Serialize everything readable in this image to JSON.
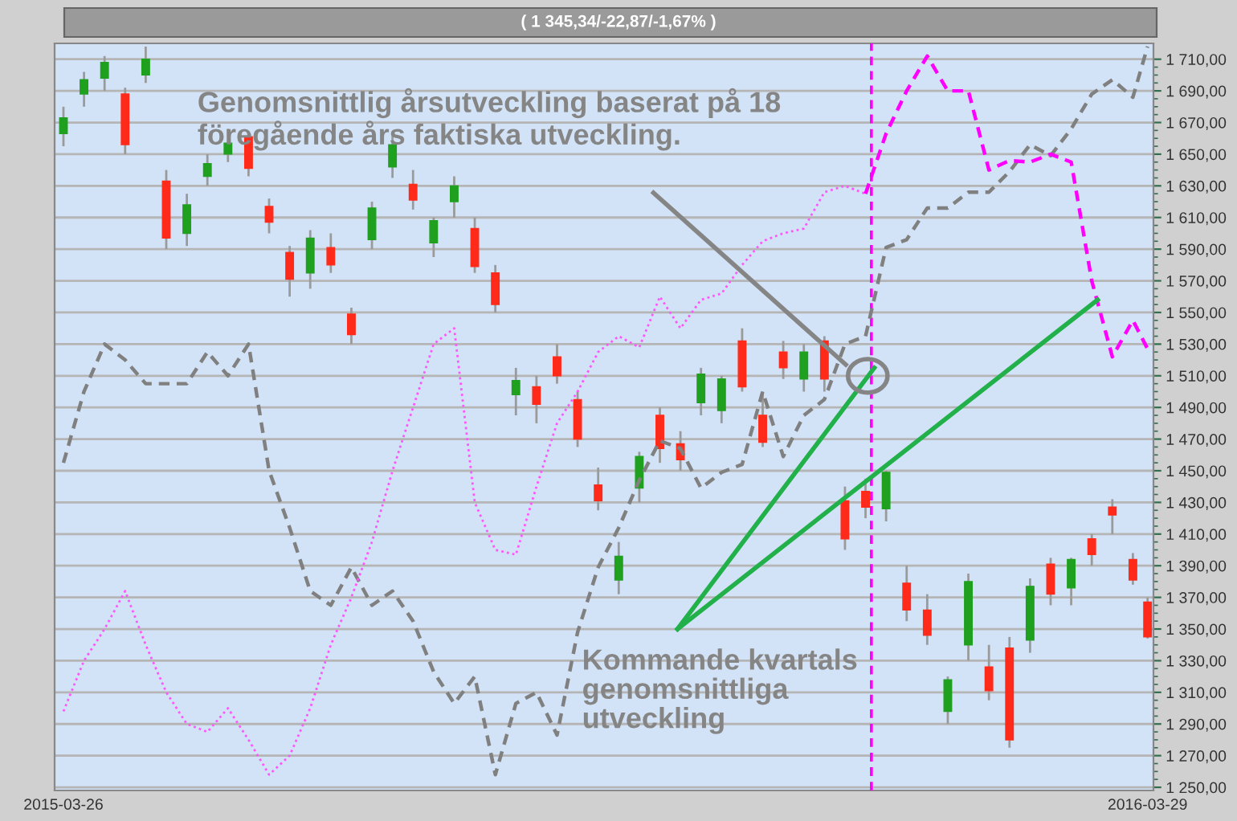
{
  "chart_data": {
    "type": "candlestick",
    "title": "( 1 345,34/-22,87/-1,67% )",
    "x": [
      "2015-03-26",
      "2015-04-02",
      "2015-04-09",
      "2015-04-16",
      "2015-04-23",
      "2015-04-30",
      "2015-05-07",
      "2015-05-14",
      "2015-05-21",
      "2015-05-28",
      "2015-06-04",
      "2015-06-11",
      "2015-06-18",
      "2015-06-25",
      "2015-07-02",
      "2015-07-09",
      "2015-07-16",
      "2015-07-23",
      "2015-07-30",
      "2015-08-06",
      "2015-08-13",
      "2015-08-20",
      "2015-08-27",
      "2015-09-03",
      "2015-09-10",
      "2015-09-17",
      "2015-09-24",
      "2015-10-01",
      "2015-10-08",
      "2015-10-15",
      "2015-10-22",
      "2015-10-29",
      "2015-11-05",
      "2015-11-12",
      "2015-11-19",
      "2015-11-26",
      "2015-12-03",
      "2015-12-10",
      "2015-12-17",
      "2015-12-24",
      "2015-12-31",
      "2016-01-07",
      "2016-01-14",
      "2016-01-21",
      "2016-01-28",
      "2016-02-04",
      "2016-02-11",
      "2016-02-18",
      "2016-02-25",
      "2016-03-03",
      "2016-03-10",
      "2016-03-17",
      "2016-03-24",
      "2016-03-29"
    ],
    "ohlc": [
      [
        1663,
        1680,
        1655,
        1673
      ],
      [
        1688,
        1702,
        1680,
        1697
      ],
      [
        1698,
        1712,
        1690,
        1708
      ],
      [
        1688,
        1692,
        1650,
        1656
      ],
      [
        1700,
        1718,
        1695,
        1710
      ],
      [
        1633,
        1640,
        1590,
        1597
      ],
      [
        1600,
        1625,
        1592,
        1618
      ],
      [
        1636,
        1650,
        1630,
        1644
      ],
      [
        1650,
        1666,
        1645,
        1657
      ],
      [
        1661,
        1664,
        1636,
        1641
      ],
      [
        1617,
        1622,
        1600,
        1607
      ],
      [
        1588,
        1592,
        1560,
        1571
      ],
      [
        1575,
        1602,
        1565,
        1597
      ],
      [
        1591,
        1600,
        1575,
        1580
      ],
      [
        1549,
        1553,
        1530,
        1536
      ],
      [
        1596,
        1620,
        1590,
        1616
      ],
      [
        1642,
        1662,
        1635,
        1656
      ],
      [
        1631,
        1640,
        1615,
        1621
      ],
      [
        1594,
        1610,
        1585,
        1608
      ],
      [
        1620,
        1636,
        1610,
        1630
      ],
      [
        1603,
        1610,
        1575,
        1579
      ],
      [
        1575,
        1580,
        1550,
        1555
      ],
      [
        1498,
        1515,
        1485,
        1507
      ],
      [
        1503,
        1510,
        1480,
        1492
      ],
      [
        1522,
        1530,
        1505,
        1510
      ],
      [
        1495,
        1500,
        1465,
        1470
      ],
      [
        1441,
        1452,
        1425,
        1431
      ],
      [
        1381,
        1405,
        1372,
        1396
      ],
      [
        1439,
        1462,
        1430,
        1459
      ],
      [
        1485,
        1490,
        1455,
        1464
      ],
      [
        1467,
        1475,
        1450,
        1457
      ],
      [
        1493,
        1515,
        1485,
        1511
      ],
      [
        1488,
        1510,
        1480,
        1508
      ],
      [
        1532,
        1540,
        1500,
        1503
      ],
      [
        1485,
        1500,
        1465,
        1468
      ],
      [
        1525,
        1532,
        1508,
        1515
      ],
      [
        1508,
        1530,
        1500,
        1525
      ],
      [
        1532,
        1535,
        1500,
        1508
      ],
      [
        1431,
        1440,
        1400,
        1407
      ],
      [
        1437,
        1445,
        1420,
        1427
      ],
      [
        1426,
        1450,
        1418,
        1449
      ],
      [
        1379,
        1390,
        1355,
        1362
      ],
      [
        1362,
        1372,
        1340,
        1346
      ],
      [
        1298,
        1320,
        1290,
        1318
      ],
      [
        1340,
        1385,
        1330,
        1380
      ],
      [
        1326,
        1340,
        1305,
        1311
      ],
      [
        1338,
        1345,
        1275,
        1280
      ],
      [
        1343,
        1382,
        1335,
        1377
      ],
      [
        1391,
        1395,
        1365,
        1372
      ],
      [
        1376,
        1395,
        1365,
        1394
      ],
      [
        1407,
        1410,
        1390,
        1397
      ],
      [
        1427,
        1432,
        1410,
        1422
      ],
      [
        1394,
        1398,
        1378,
        1381
      ],
      [
        1367,
        1370,
        1344,
        1345
      ]
    ],
    "colors": [
      "#1fa01f",
      "#1fa01f",
      "#1fa01f",
      "#ff2a1a",
      "#1fa01f",
      "#ff2a1a",
      "#1fa01f",
      "#1fa01f",
      "#1fa01f",
      "#ff2a1a",
      "#ff2a1a",
      "#ff2a1a",
      "#1fa01f",
      "#ff2a1a",
      "#ff2a1a",
      "#1fa01f",
      "#1fa01f",
      "#ff2a1a",
      "#1fa01f",
      "#1fa01f",
      "#ff2a1a",
      "#ff2a1a",
      "#1fa01f",
      "#ff2a1a",
      "#ff2a1a",
      "#ff2a1a",
      "#ff2a1a",
      "#1fa01f",
      "#1fa01f",
      "#ff2a1a",
      "#ff2a1a",
      "#1fa01f",
      "#1fa01f",
      "#ff2a1a",
      "#ff2a1a",
      "#ff2a1a",
      "#1fa01f",
      "#ff2a1a",
      "#ff2a1a",
      "#ff2a1a",
      "#1fa01f",
      "#ff2a1a",
      "#ff2a1a",
      "#1fa01f",
      "#1fa01f",
      "#ff2a1a",
      "#ff2a1a",
      "#1fa01f",
      "#ff2a1a",
      "#1fa01f",
      "#ff2a1a",
      "#ff2a1a",
      "#ff2a1a",
      "#ff2a1a"
    ],
    "series": [
      {
        "type": "line",
        "color": "#808080",
        "line_style": "dashed",
        "values": [
          1455,
          1500,
          1530,
          1520,
          1505,
          1505,
          1505,
          1525,
          1510,
          1530,
          1450,
          1414,
          1374,
          1365,
          1389,
          1365,
          1374,
          1355,
          1323,
          1303,
          1320,
          1258,
          1303,
          1310,
          1283,
          1348,
          1389,
          1414,
          1444,
          1469,
          1464,
          1439,
          1449,
          1454,
          1500,
          1459,
          1485,
          1495,
          1530,
          1535,
          1591,
          1596,
          1616,
          1616,
          1626,
          1626,
          1639,
          1656,
          1649,
          1666,
          1688,
          1697,
          1686,
          1718
        ]
      },
      {
        "type": "line",
        "color": "#ff55ff",
        "line_style": "dotted",
        "values": [
          1298,
          1330,
          1350,
          1374,
          1340,
          1310,
          1290,
          1285,
          1300,
          1280,
          1258,
          1270,
          1300,
          1340,
          1370,
          1405,
          1450,
          1490,
          1530,
          1540,
          1430,
          1400,
          1397,
          1440,
          1480,
          1500,
          1525,
          1535,
          1528,
          1560,
          1540,
          1558,
          1562,
          1580,
          1595,
          1600,
          1603,
          1626,
          1630,
          1625,
          null,
          null,
          null,
          null,
          null,
          null,
          null,
          null,
          null,
          null,
          null,
          null,
          null,
          null
        ]
      },
      {
        "type": "line",
        "color": "#ff00ff",
        "line_style": "dashed",
        "values": [
          null,
          null,
          null,
          null,
          null,
          null,
          null,
          null,
          null,
          null,
          null,
          null,
          null,
          null,
          null,
          null,
          null,
          null,
          null,
          null,
          null,
          null,
          null,
          null,
          null,
          null,
          null,
          null,
          null,
          null,
          null,
          null,
          null,
          null,
          null,
          null,
          null,
          null,
          null,
          1625,
          1663,
          1690,
          1712,
          1690,
          1690,
          1640,
          1646,
          1645,
          1650,
          1645,
          1570,
          1522,
          1545,
          1527
        ]
      },
      {
        "type": "line",
        "color": "#22b04a",
        "line_style": "solid",
        "x": [
          "2015-10-21",
          "2015-12-27"
        ],
        "values": [
          1350,
          1515
        ]
      },
      {
        "type": "line",
        "color": "#22b04a",
        "line_style": "solid",
        "x": [
          "2015-10-21",
          "2016-03-12"
        ],
        "values": [
          1350,
          1558
        ]
      }
    ],
    "ref_lines": [
      {
        "axis": "x",
        "value": "2015-12-26",
        "label": null,
        "color": "#ff00ff",
        "line_style": "dashed"
      }
    ],
    "annotations": [
      "Genomsnittlig årsutveckling baserat på 18\nföregående års faktiska utveckling.",
      "Kommande kvartals\ngenomsnittliga\nutveckling"
    ],
    "xlim": [
      "2015-03-23",
      "2016-03-31"
    ],
    "xticks": [
      "2015-03-26",
      "2016-03-29"
    ],
    "ylim": [
      1248,
      1720
    ],
    "yticks": [
      {
        "value": 1250,
        "label": "1 250,00"
      },
      {
        "value": 1270,
        "label": "1 270,00"
      },
      {
        "value": 1290,
        "label": "1 290,00"
      },
      {
        "value": 1310,
        "label": "1 310,00"
      },
      {
        "value": 1330,
        "label": "1 330,00"
      },
      {
        "value": 1350,
        "label": "1 350,00"
      },
      {
        "value": 1370,
        "label": "1 370,00"
      },
      {
        "value": 1390,
        "label": "1 390,00"
      },
      {
        "value": 1410,
        "label": "1 410,00"
      },
      {
        "value": 1430,
        "label": "1 430,00"
      },
      {
        "value": 1450,
        "label": "1 450,00"
      },
      {
        "value": 1470,
        "label": "1 470,00"
      },
      {
        "value": 1490,
        "label": "1 490,00"
      },
      {
        "value": 1510,
        "label": "1 510,00"
      },
      {
        "value": 1530,
        "label": "1 530,00"
      },
      {
        "value": 1550,
        "label": "1 550,00"
      },
      {
        "value": 1570,
        "label": "1 570,00"
      },
      {
        "value": 1590,
        "label": "1 590,00"
      },
      {
        "value": 1610,
        "label": "1 610,00"
      },
      {
        "value": 1630,
        "label": "1 630,00"
      },
      {
        "value": 1650,
        "label": "1 650,00"
      },
      {
        "value": 1670,
        "label": "1 670,00"
      },
      {
        "value": 1690,
        "label": "1 690,00"
      },
      {
        "value": 1710,
        "label": "1 710,00"
      }
    ],
    "grid": "y",
    "legend": false
  }
}
